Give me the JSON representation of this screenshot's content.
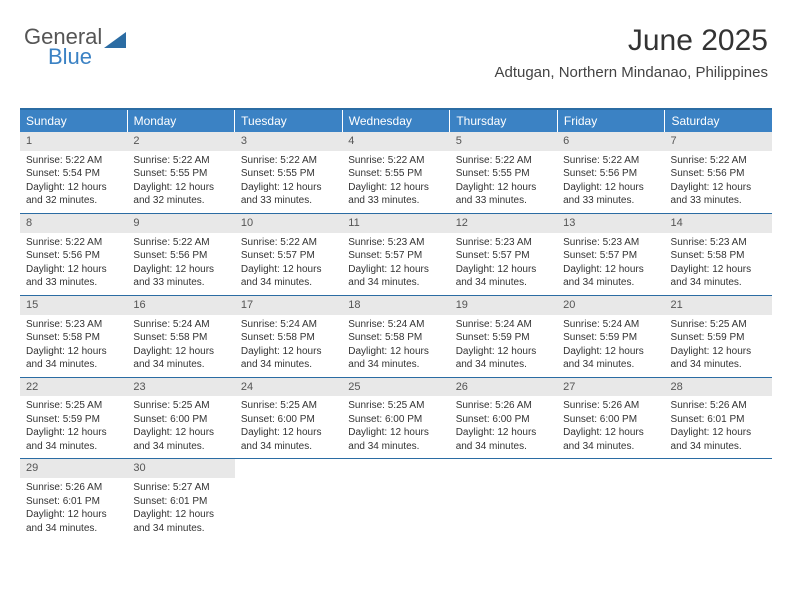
{
  "logo": {
    "general": "General",
    "blue": "Blue"
  },
  "header": {
    "month_title": "June 2025",
    "location": "Adtugan, Northern Mindanao, Philippines"
  },
  "colors": {
    "brand_blue": "#3b82c4",
    "rule_blue": "#2b6ca3",
    "daynum_bg": "#e8e8e8",
    "text": "#333333",
    "bg": "#ffffff"
  },
  "weekdays": [
    "Sunday",
    "Monday",
    "Tuesday",
    "Wednesday",
    "Thursday",
    "Friday",
    "Saturday"
  ],
  "weeks": [
    [
      {
        "day": 1,
        "sunrise": "5:22 AM",
        "sunset": "5:54 PM",
        "daylight": "12 hours and 32 minutes."
      },
      {
        "day": 2,
        "sunrise": "5:22 AM",
        "sunset": "5:55 PM",
        "daylight": "12 hours and 32 minutes."
      },
      {
        "day": 3,
        "sunrise": "5:22 AM",
        "sunset": "5:55 PM",
        "daylight": "12 hours and 33 minutes."
      },
      {
        "day": 4,
        "sunrise": "5:22 AM",
        "sunset": "5:55 PM",
        "daylight": "12 hours and 33 minutes."
      },
      {
        "day": 5,
        "sunrise": "5:22 AM",
        "sunset": "5:55 PM",
        "daylight": "12 hours and 33 minutes."
      },
      {
        "day": 6,
        "sunrise": "5:22 AM",
        "sunset": "5:56 PM",
        "daylight": "12 hours and 33 minutes."
      },
      {
        "day": 7,
        "sunrise": "5:22 AM",
        "sunset": "5:56 PM",
        "daylight": "12 hours and 33 minutes."
      }
    ],
    [
      {
        "day": 8,
        "sunrise": "5:22 AM",
        "sunset": "5:56 PM",
        "daylight": "12 hours and 33 minutes."
      },
      {
        "day": 9,
        "sunrise": "5:22 AM",
        "sunset": "5:56 PM",
        "daylight": "12 hours and 33 minutes."
      },
      {
        "day": 10,
        "sunrise": "5:22 AM",
        "sunset": "5:57 PM",
        "daylight": "12 hours and 34 minutes."
      },
      {
        "day": 11,
        "sunrise": "5:23 AM",
        "sunset": "5:57 PM",
        "daylight": "12 hours and 34 minutes."
      },
      {
        "day": 12,
        "sunrise": "5:23 AM",
        "sunset": "5:57 PM",
        "daylight": "12 hours and 34 minutes."
      },
      {
        "day": 13,
        "sunrise": "5:23 AM",
        "sunset": "5:57 PM",
        "daylight": "12 hours and 34 minutes."
      },
      {
        "day": 14,
        "sunrise": "5:23 AM",
        "sunset": "5:58 PM",
        "daylight": "12 hours and 34 minutes."
      }
    ],
    [
      {
        "day": 15,
        "sunrise": "5:23 AM",
        "sunset": "5:58 PM",
        "daylight": "12 hours and 34 minutes."
      },
      {
        "day": 16,
        "sunrise": "5:24 AM",
        "sunset": "5:58 PM",
        "daylight": "12 hours and 34 minutes."
      },
      {
        "day": 17,
        "sunrise": "5:24 AM",
        "sunset": "5:58 PM",
        "daylight": "12 hours and 34 minutes."
      },
      {
        "day": 18,
        "sunrise": "5:24 AM",
        "sunset": "5:58 PM",
        "daylight": "12 hours and 34 minutes."
      },
      {
        "day": 19,
        "sunrise": "5:24 AM",
        "sunset": "5:59 PM",
        "daylight": "12 hours and 34 minutes."
      },
      {
        "day": 20,
        "sunrise": "5:24 AM",
        "sunset": "5:59 PM",
        "daylight": "12 hours and 34 minutes."
      },
      {
        "day": 21,
        "sunrise": "5:25 AM",
        "sunset": "5:59 PM",
        "daylight": "12 hours and 34 minutes."
      }
    ],
    [
      {
        "day": 22,
        "sunrise": "5:25 AM",
        "sunset": "5:59 PM",
        "daylight": "12 hours and 34 minutes."
      },
      {
        "day": 23,
        "sunrise": "5:25 AM",
        "sunset": "6:00 PM",
        "daylight": "12 hours and 34 minutes."
      },
      {
        "day": 24,
        "sunrise": "5:25 AM",
        "sunset": "6:00 PM",
        "daylight": "12 hours and 34 minutes."
      },
      {
        "day": 25,
        "sunrise": "5:25 AM",
        "sunset": "6:00 PM",
        "daylight": "12 hours and 34 minutes."
      },
      {
        "day": 26,
        "sunrise": "5:26 AM",
        "sunset": "6:00 PM",
        "daylight": "12 hours and 34 minutes."
      },
      {
        "day": 27,
        "sunrise": "5:26 AM",
        "sunset": "6:00 PM",
        "daylight": "12 hours and 34 minutes."
      },
      {
        "day": 28,
        "sunrise": "5:26 AM",
        "sunset": "6:01 PM",
        "daylight": "12 hours and 34 minutes."
      }
    ],
    [
      {
        "day": 29,
        "sunrise": "5:26 AM",
        "sunset": "6:01 PM",
        "daylight": "12 hours and 34 minutes."
      },
      {
        "day": 30,
        "sunrise": "5:27 AM",
        "sunset": "6:01 PM",
        "daylight": "12 hours and 34 minutes."
      },
      null,
      null,
      null,
      null,
      null
    ]
  ],
  "labels": {
    "sunrise_prefix": "Sunrise: ",
    "sunset_prefix": "Sunset: ",
    "daylight_prefix": "Daylight: "
  }
}
